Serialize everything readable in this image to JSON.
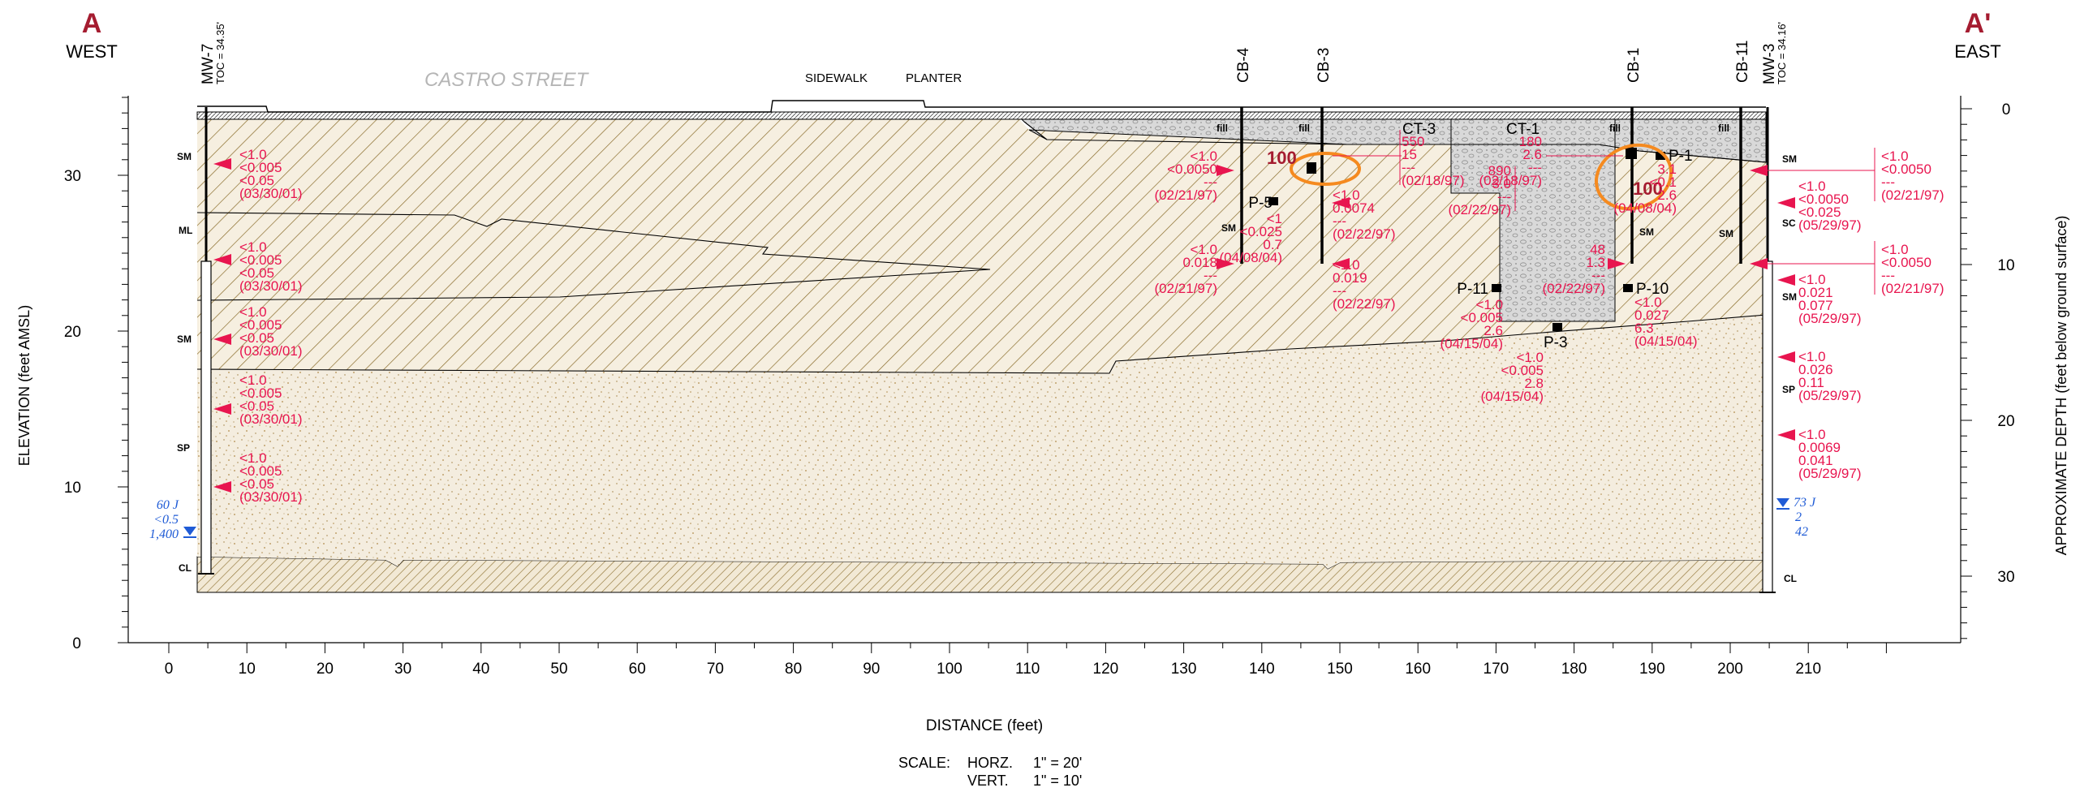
{
  "colors": {
    "chem": "#e8154f",
    "title_red": "#a51c30",
    "water": "#1f5bd6",
    "highlight": "#f58a1f",
    "silt": "#8a6d2c",
    "sand": "#f3ecdc",
    "gravel": "#d7d7d7"
  },
  "header": {
    "left_letter": "A",
    "left_dir": "WEST",
    "right_letter": "A'",
    "right_dir": "EAST",
    "street": "CASTRO STREET",
    "sidewalk": "SIDEWALK",
    "planter": "PLANTER"
  },
  "axes": {
    "left_label": "ELEVATION (feet AMSL)",
    "right_label": "APPROXIMATE DEPTH (feet below ground surface)",
    "x_label": "DISTANCE (feet)",
    "left_ticks": [
      "0",
      "10",
      "20",
      "30"
    ],
    "right_ticks": [
      "0",
      "10",
      "20",
      "30"
    ],
    "x_ticks": [
      "0",
      "10",
      "20",
      "30",
      "40",
      "50",
      "60",
      "70",
      "80",
      "90",
      "100",
      "110",
      "120",
      "130",
      "140",
      "150",
      "160",
      "170",
      "180",
      "190",
      "200",
      "210"
    ]
  },
  "scale": {
    "prefix": "SCALE:",
    "horz_label": "HORZ.",
    "horz_value": "1\" = 20'",
    "vert_label": "VERT.",
    "vert_value": "1\" = 10'"
  },
  "wells": [
    {
      "name": "MW-7",
      "toc": "TOC = 34.35'"
    },
    {
      "name": "MW-3",
      "toc": "TOC = 34.16'"
    }
  ],
  "borings": [
    "CB-4",
    "CB-3",
    "CB-1",
    "CB-11"
  ],
  "trenches": [
    "CT-3",
    "CT-1"
  ],
  "probes": [
    "P-5",
    "P-11",
    "P-3",
    "P-10",
    "P-1"
  ],
  "soils": {
    "mw7": [
      "SM",
      "ML",
      "SM",
      "SP",
      "CL"
    ],
    "mw3": [
      "SM",
      "SC",
      "SM",
      "SP",
      "CL"
    ],
    "cb4": "SM",
    "cb1": "SM",
    "cb11": "SM",
    "fill": [
      "fill",
      "fill",
      "fill",
      "fill"
    ]
  },
  "highlights": [
    "100",
    "100"
  ],
  "groundwater": {
    "mw7": [
      "60 J",
      "<0.5",
      "1,400"
    ],
    "mw3": [
      "73 J",
      "2",
      "42"
    ]
  },
  "samples": {
    "mw7_1": [
      "<1.0",
      "<0.005",
      "<0.05",
      "(03/30/01)"
    ],
    "mw7_2": [
      "<1.0",
      "<0.005",
      "<0.05",
      "(03/30/01)"
    ],
    "mw7_3": [
      "<1.0",
      "<0.005",
      "<0.05",
      "(03/30/01)"
    ],
    "mw7_4": [
      "<1.0",
      "<0.005",
      "<0.05",
      "(03/30/01)"
    ],
    "mw7_5": [
      "<1.0",
      "<0.005",
      "<0.05",
      "(03/30/01)"
    ],
    "cb4_1": [
      "<1.0",
      "<0.0050",
      "---",
      "(02/21/97)"
    ],
    "cb4_2": [
      "<1.0",
      "0.018",
      "---",
      "(02/21/97)"
    ],
    "ct3": [
      "550",
      "15",
      "---",
      "(02/18/97)"
    ],
    "ct1": [
      "180",
      "2.6",
      "---",
      "(02/18/97)"
    ],
    "ct1b": [
      "890",
      "3.0",
      "---",
      "(02/22/97)"
    ],
    "p5": [
      "<1",
      "<0.025",
      "0.7",
      "(04/08/04)"
    ],
    "cb3_1": [
      "<1.0",
      "0.0074",
      "---",
      "(02/22/97)"
    ],
    "cb3_2": [
      "<1.0",
      "0.019",
      "---",
      "(02/22/97)"
    ],
    "p11": [
      "<1.0",
      "<0.005",
      "2.6",
      "(04/15/04)"
    ],
    "p3": [
      "<1.0",
      "<0.005",
      "2.8",
      "(04/15/04)"
    ],
    "cb1_low": [
      "48",
      "1.3",
      "---",
      "(02/22/97)"
    ],
    "p1": [
      "3.1",
      "<0.1",
      "2.6",
      "(04/08/04)"
    ],
    "p10": [
      "<1.0",
      "0.027",
      "6.3",
      "(04/15/04)"
    ],
    "cb11_1": [
      "<1.0",
      "<0.0050",
      "---",
      "(02/21/97)"
    ],
    "cb11_2": [
      "<1.0",
      "<0.0050",
      "---",
      "(02/21/97)"
    ],
    "mw3_1": [
      "<1.0",
      "<0.0050",
      "<0.025",
      "(05/29/97)"
    ],
    "mw3_2": [
      "<1.0",
      "0.021",
      "0.077",
      "(05/29/97)"
    ],
    "mw3_3": [
      "<1.0",
      "0.026",
      "0.11",
      "(05/29/97)"
    ],
    "mw3_4": [
      "<1.0",
      "0.0069",
      "0.041",
      "(05/29/97)"
    ]
  }
}
